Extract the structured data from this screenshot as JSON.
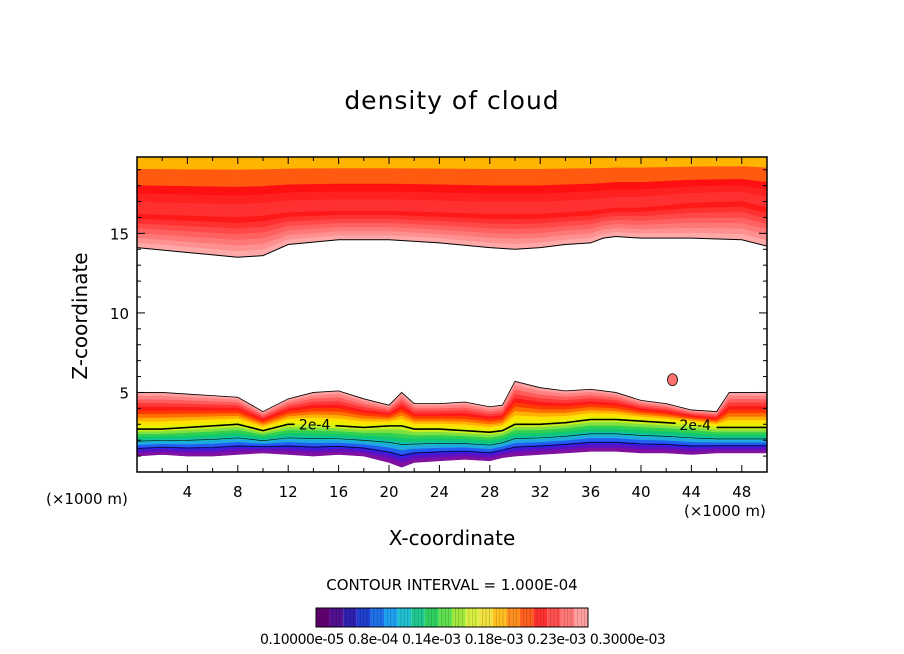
{
  "chart_data": {
    "type": "heatmap",
    "title": "density of cloud",
    "xlabel": "X-coordinate",
    "ylabel": "Z-coordinate",
    "x_unit_left": "(×1000 m)",
    "x_unit_right": "(×1000 m)",
    "xlim": [
      0,
      50
    ],
    "ylim": [
      0,
      19.8
    ],
    "x_ticks": [
      4,
      8,
      12,
      16,
      20,
      24,
      28,
      32,
      36,
      40,
      44,
      48
    ],
    "y_ticks": [
      5,
      10,
      15
    ],
    "contour_interval_text": "CONTOUR INTERVAL = 1.000E-04",
    "contour_label": "2e-4",
    "colorbar_text": "0.10000e-05 0.8e-04 0.14e-03 0.18e-03 0.23e-03 0.3000e-03",
    "upper_band": {
      "x": [
        0,
        4,
        8,
        10,
        12,
        16,
        20,
        24,
        28,
        30,
        32,
        34,
        36,
        37,
        38,
        40,
        44,
        48,
        50
      ],
      "bottom": [
        14.1,
        13.8,
        13.5,
        13.6,
        14.3,
        14.6,
        14.6,
        14.4,
        14.1,
        14.0,
        14.1,
        14.3,
        14.4,
        14.7,
        14.8,
        14.7,
        14.7,
        14.6,
        14.2
      ],
      "core": [
        16.2,
        16.1,
        16.0,
        16.1,
        16.3,
        16.4,
        16.4,
        16.3,
        16.2,
        16.2,
        16.2,
        16.3,
        16.4,
        16.5,
        16.6,
        16.6,
        16.9,
        17.0,
        16.6
      ]
    },
    "lower_band": {
      "x": [
        0,
        2,
        4,
        6,
        8,
        10,
        12,
        14,
        16,
        18,
        20,
        21,
        22,
        24,
        26,
        28,
        29,
        30,
        32,
        34,
        36,
        38,
        40,
        42,
        44,
        46,
        47,
        48,
        50
      ],
      "top": [
        5.0,
        5.0,
        4.9,
        4.8,
        4.7,
        3.8,
        4.6,
        5.0,
        5.1,
        4.6,
        4.2,
        5.0,
        4.3,
        4.3,
        4.4,
        4.1,
        4.2,
        5.7,
        5.3,
        5.1,
        5.2,
        5.0,
        4.5,
        4.3,
        3.9,
        3.8,
        5.0,
        5.0,
        5.0
      ],
      "c2e4": [
        2.7,
        2.7,
        2.8,
        2.9,
        3.0,
        2.6,
        3.0,
        3.0,
        2.9,
        2.8,
        2.9,
        2.9,
        2.7,
        2.7,
        2.6,
        2.5,
        2.6,
        3.0,
        3.0,
        3.1,
        3.3,
        3.3,
        3.2,
        3.1,
        3.0,
        2.8,
        2.8,
        2.8,
        2.8
      ],
      "bottom": [
        1.0,
        1.1,
        1.0,
        1.0,
        1.1,
        1.2,
        1.1,
        1.0,
        1.1,
        1.0,
        0.6,
        0.3,
        0.6,
        0.7,
        0.8,
        0.7,
        0.9,
        1.0,
        1.1,
        1.2,
        1.3,
        1.3,
        1.2,
        1.2,
        1.1,
        1.2,
        1.2,
        1.2,
        1.2
      ]
    }
  }
}
